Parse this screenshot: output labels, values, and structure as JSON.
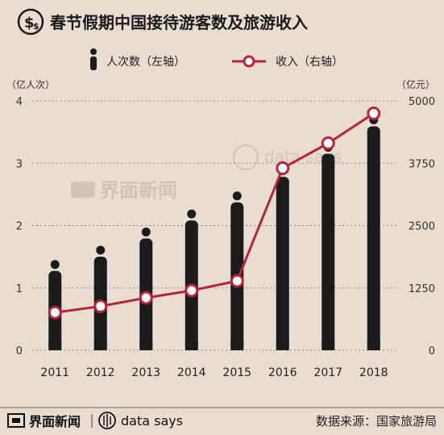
{
  "header": {
    "title": "春节假期中国接待游客数及旅游收入"
  },
  "footer": {
    "brand_cn": "界面新闻",
    "brand_en": "data says",
    "source": "数据来源：国家旅游局"
  },
  "watermark": {
    "brand_cn": "界面新闻",
    "brand_en": "data says"
  },
  "chart_data": {
    "type": "bar",
    "title": "春节假期中国接待游客数及旅游收入",
    "categories": [
      "2011",
      "2012",
      "2013",
      "2014",
      "2015",
      "2016",
      "2017",
      "2018"
    ],
    "series": [
      {
        "name": "人次数（左轴）",
        "type": "bar",
        "axis": "left",
        "values": [
          1.35,
          1.58,
          1.87,
          2.16,
          2.45,
          2.86,
          3.23,
          3.67
        ]
      },
      {
        "name": "收入（右轴）",
        "type": "line",
        "axis": "right",
        "values": [
          756,
          881,
          1052,
          1197,
          1390,
          3650,
          4150,
          4750
        ]
      }
    ],
    "y_left": {
      "label": "（亿人次）",
      "ticks": [
        "0",
        "1",
        "2",
        "3",
        "4"
      ],
      "range": [
        0,
        4
      ]
    },
    "y_right": {
      "label": "（亿元）",
      "ticks": [
        "0",
        "1250",
        "2500",
        "3750",
        "5000"
      ],
      "range": [
        0,
        5000
      ]
    },
    "grid": true,
    "legend": "top",
    "colors": {
      "bar": "#1b1b1b",
      "line": "#b5243a",
      "marker_fill": "#ffffff",
      "background": "#e9ddd1"
    }
  }
}
